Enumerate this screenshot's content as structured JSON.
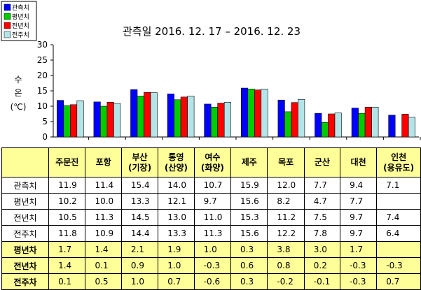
{
  "chart_data": {
    "type": "bar",
    "title": "관측일 2016. 12. 17 – 2016. 12. 23",
    "ylabel_chars": [
      "수",
      "온",
      "(℃)"
    ],
    "ylim": [
      0,
      30
    ],
    "yticks": [
      0,
      5,
      10,
      15,
      20,
      25,
      30
    ],
    "grid": false,
    "legend_position": "top-left",
    "categories": [
      "주문진",
      "포항",
      "부산(기장)",
      "통영(산양)",
      "여수(화양)",
      "제주",
      "목포",
      "군산",
      "대천",
      "인천(용유도)"
    ],
    "series": [
      {
        "name": "관측치",
        "color": "#0000ff",
        "values": [
          11.9,
          11.4,
          15.4,
          14.0,
          10.7,
          15.9,
          12.0,
          7.7,
          9.4,
          7.1
        ]
      },
      {
        "name": "평년치",
        "color": "#00cc00",
        "values": [
          10.2,
          10.0,
          13.3,
          12.1,
          9.7,
          15.6,
          8.2,
          4.7,
          7.7,
          null
        ]
      },
      {
        "name": "전년치",
        "color": "#ff0000",
        "values": [
          10.5,
          11.3,
          14.5,
          13.0,
          11.0,
          15.3,
          11.2,
          7.5,
          9.7,
          7.4
        ]
      },
      {
        "name": "전주치",
        "color": "#b3e5e8",
        "values": [
          11.8,
          10.9,
          14.4,
          13.3,
          11.3,
          15.6,
          12.2,
          7.8,
          9.7,
          6.4
        ]
      }
    ]
  },
  "table": {
    "headers": [
      [
        "주문진"
      ],
      [
        "포항"
      ],
      [
        "부산",
        "(기장)"
      ],
      [
        "통영",
        "(산양)"
      ],
      [
        "여수",
        "(화양)"
      ],
      [
        "제주"
      ],
      [
        "목포"
      ],
      [
        "군산"
      ],
      [
        "대천"
      ],
      [
        "인천",
        "(용유도)"
      ]
    ],
    "rows": [
      {
        "label": "관측치",
        "values": [
          "11.9",
          "11.4",
          "15.4",
          "14.0",
          "10.7",
          "15.9",
          "12.0",
          "7.7",
          "9.4",
          "7.1"
        ],
        "style": "plain"
      },
      {
        "label": "평년치",
        "values": [
          "10.2",
          "10.0",
          "13.3",
          "12.1",
          "9.7",
          "15.6",
          "8.2",
          "4.7",
          "7.7",
          ""
        ],
        "style": "plain"
      },
      {
        "label": "전년치",
        "values": [
          "10.5",
          "11.3",
          "14.5",
          "13.0",
          "11.0",
          "15.3",
          "11.2",
          "7.5",
          "9.7",
          "7.4"
        ],
        "style": "plain"
      },
      {
        "label": "전주치",
        "values": [
          "11.8",
          "10.9",
          "14.4",
          "13.3",
          "11.3",
          "15.6",
          "12.2",
          "7.8",
          "9.7",
          "6.4"
        ],
        "style": "plain"
      },
      {
        "label": "평년차",
        "values": [
          "1.7",
          "1.4",
          "2.1",
          "1.9",
          "1.0",
          "0.3",
          "3.8",
          "3.0",
          "1.7",
          ""
        ],
        "style": "diff"
      },
      {
        "label": "전년차",
        "values": [
          "1.4",
          "0.1",
          "0.9",
          "1.0",
          "-0.3",
          "0.6",
          "0.8",
          "0.2",
          "-0.3",
          "-0.3"
        ],
        "style": "diff"
      },
      {
        "label": "전주차",
        "values": [
          "0.1",
          "0.5",
          "1.0",
          "0.7",
          "-0.6",
          "0.3",
          "-0.2",
          "-0.1",
          "-0.3",
          "0.7"
        ],
        "style": "diff"
      }
    ]
  }
}
